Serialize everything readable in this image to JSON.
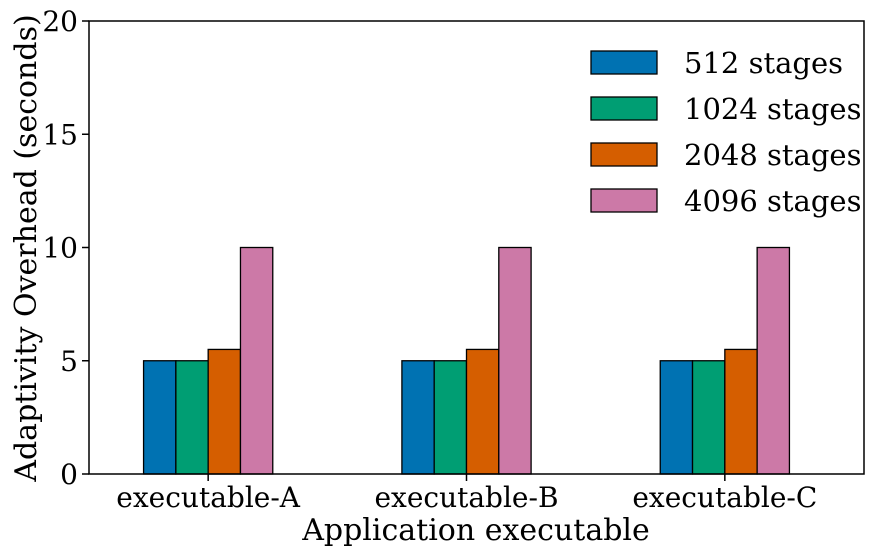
{
  "chart_data": {
    "type": "bar",
    "title": "",
    "xlabel": "Application executable",
    "ylabel": "Adaptivity Overhead (seconds)",
    "ylim": [
      0,
      20
    ],
    "yticks": [
      "0",
      "5",
      "10",
      "15",
      "20"
    ],
    "categories": [
      "executable-A",
      "executable-B",
      "executable-C"
    ],
    "series": [
      {
        "name": "512 stages",
        "color": "#0072b2",
        "values": [
          5,
          5,
          5
        ]
      },
      {
        "name": "1024 stages",
        "color": "#009e73",
        "values": [
          5,
          5,
          5
        ]
      },
      {
        "name": "2048 stages",
        "color": "#d55e00",
        "values": [
          5.5,
          5.5,
          5.5
        ]
      },
      {
        "name": "4096 stages",
        "color": "#cc79a7",
        "values": [
          10,
          10,
          10
        ]
      }
    ],
    "grid": false,
    "legend_position": "top-right"
  }
}
